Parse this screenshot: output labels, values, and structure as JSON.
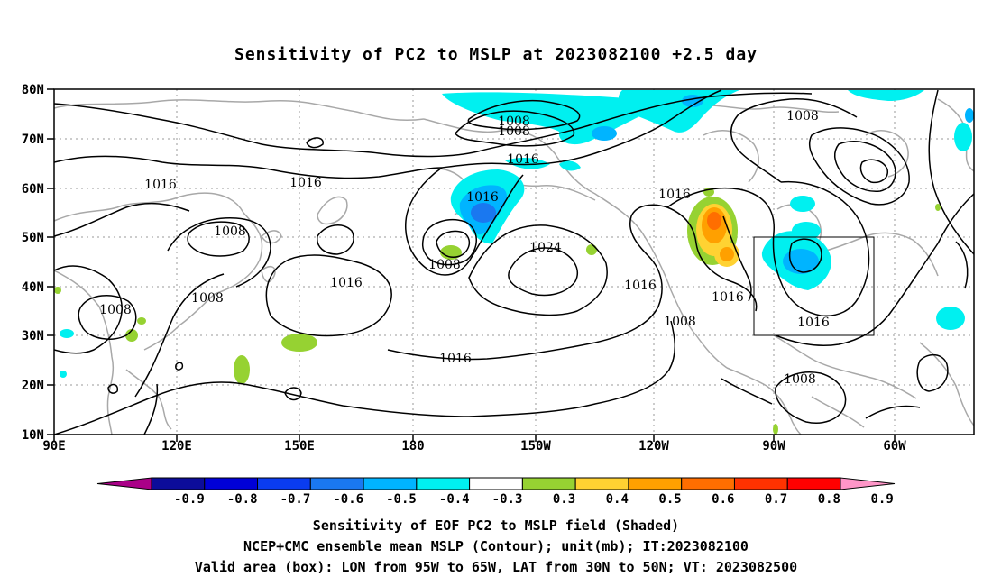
{
  "title": "Sensitivity of PC2 to MSLP at 2023082100 +2.5 day",
  "lat_labels": [
    "80N",
    "70N",
    "60N",
    "50N",
    "40N",
    "30N",
    "20N",
    "10N"
  ],
  "lon_labels": [
    "90E",
    "120E",
    "150E",
    "180",
    "150W",
    "120W",
    "90W",
    "60W"
  ],
  "isobar_labels": [
    "1008",
    "1008",
    "1016",
    "1016",
    "1016",
    "1016",
    "1008",
    "1008",
    "1016",
    "1024",
    "1016",
    "1016",
    "1008",
    "1016",
    "1008",
    "1008",
    "1016",
    "1008",
    "1008"
  ],
  "colorbar": {
    "labels": [
      "-0.9",
      "-0.8",
      "-0.7",
      "-0.6",
      "-0.5",
      "-0.4",
      "-0.3",
      "0.3",
      "0.4",
      "0.5",
      "0.6",
      "0.7",
      "0.8",
      "0.9"
    ],
    "colors": [
      "#aa0088",
      "#0c0c9a",
      "#0000d8",
      "#0a3cf0",
      "#1a78f0",
      "#00b4ff",
      "#00f0f0",
      "#ffffff",
      "#96d232",
      "#ffd232",
      "#ffa000",
      "#ff6e00",
      "#ff3200",
      "#ff0000",
      "#ff96c8"
    ]
  },
  "valid_box": {
    "lon_w": -95,
    "lon_e": -65,
    "lat_s": 30,
    "lat_n": 50
  },
  "captions": [
    "Sensitivity of EOF PC2 to MSLP field (Shaded)",
    "NCEP+CMC ensemble mean MSLP (Contour); unit(mb); IT:2023082100",
    "Valid area (box): LON from 95W to 65W, LAT from 30N to 50N; VT: 2023082500"
  ]
}
